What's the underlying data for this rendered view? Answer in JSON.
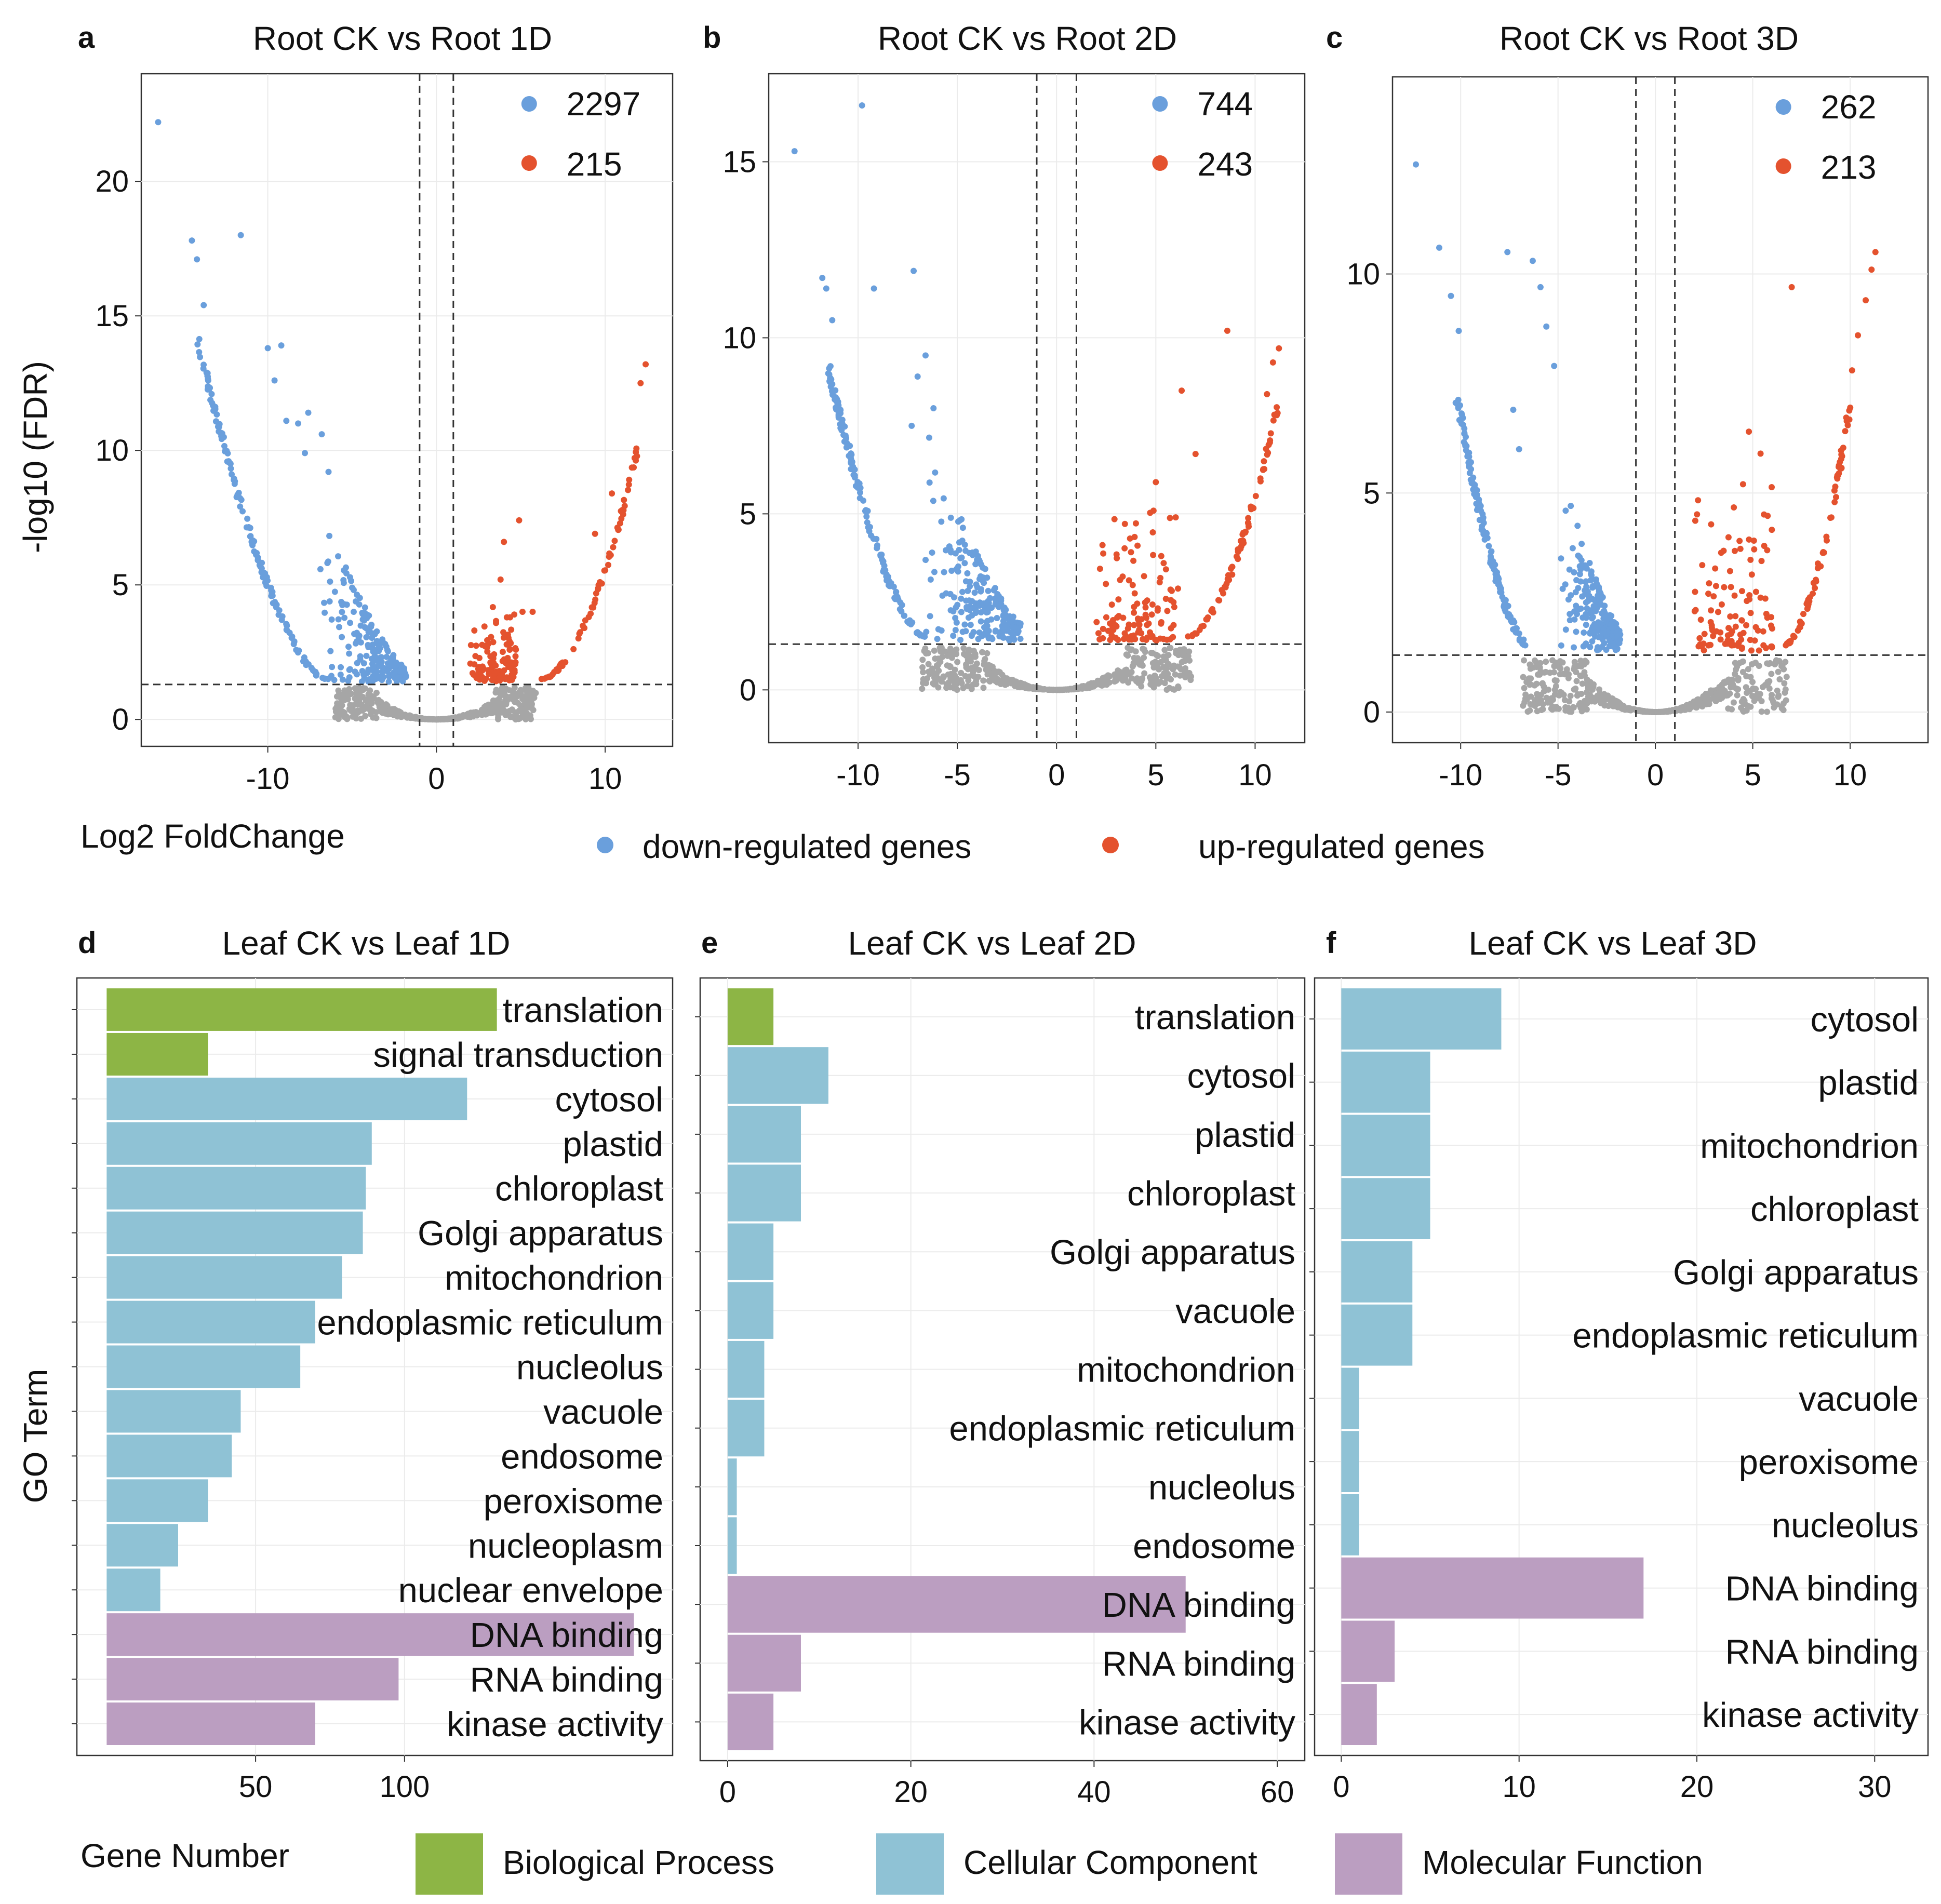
{
  "colors": {
    "down": "#6a9fdc",
    "up": "#e4522e",
    "ns": "#a6a6a6",
    "bp": "#8db545",
    "cc": "#8fc2d5",
    "mf": "#bb9ec1"
  },
  "axes": {
    "volcano_y_title": "-log10 (FDR)",
    "volcano_x_title": "Log2 FoldChange",
    "go_y_title": "GO Term",
    "go_x_title": "Gene Number"
  },
  "legend_volcano": {
    "down_label": "down-regulated genes",
    "up_label": "up-regulated genes"
  },
  "legend_go": {
    "bp_label": "Biological Process",
    "cc_label": "Cellular Component",
    "mf_label": "Molecular Function"
  },
  "chart_data": [
    {
      "id": "a",
      "letter": "a",
      "type": "scatter",
      "title": "Root CK vs Root 1D",
      "down_count": "2297",
      "up_count": "215",
      "xlim": [
        -17.5,
        14
      ],
      "ylim": [
        -1,
        24
      ],
      "xticks": [
        -10,
        0,
        10
      ],
      "yticks": [
        0,
        5,
        10,
        15,
        20
      ],
      "fc_threshold": 1,
      "fdr_threshold": 1.3,
      "outliers_down": [
        [
          -16.5,
          22.2
        ],
        [
          -14.5,
          17.8
        ],
        [
          -14.2,
          17.1
        ],
        [
          -11.6,
          18.0
        ],
        [
          -13.8,
          15.4
        ],
        [
          -10.0,
          13.8
        ],
        [
          -9.2,
          13.9
        ],
        [
          -9.6,
          12.6
        ],
        [
          -8.9,
          11.1
        ],
        [
          -8.2,
          11.0
        ],
        [
          -7.6,
          11.4
        ],
        [
          -6.8,
          10.6
        ],
        [
          -7.8,
          9.9
        ],
        [
          -6.4,
          9.2
        ]
      ],
      "outliers_up": [
        [
          12.4,
          13.2
        ],
        [
          12.1,
          12.5
        ],
        [
          10.4,
          8.4
        ],
        [
          4.9,
          7.4
        ],
        [
          4.0,
          6.6
        ],
        [
          5.7,
          4.0
        ],
        [
          5.1,
          4.0
        ],
        [
          9.4,
          6.9
        ],
        [
          3.8,
          5.2
        ]
      ]
    },
    {
      "id": "b",
      "letter": "b",
      "type": "scatter",
      "title": "Root CK vs Root 2D",
      "down_count": "744",
      "up_count": "243",
      "xlim": [
        -14.5,
        12.5
      ],
      "ylim": [
        -1.5,
        17.5
      ],
      "xticks": [
        -10,
        -5,
        0,
        5,
        10
      ],
      "yticks": [
        0,
        5,
        10,
        15
      ],
      "fc_threshold": 1,
      "fdr_threshold": 1.3,
      "outliers_down": [
        [
          -13.2,
          15.3
        ],
        [
          -9.8,
          16.6
        ],
        [
          -11.8,
          11.7
        ],
        [
          -11.6,
          11.4
        ],
        [
          -11.3,
          10.5
        ],
        [
          -9.2,
          11.4
        ],
        [
          -7.2,
          11.9
        ],
        [
          -6.6,
          9.5
        ],
        [
          -7.0,
          8.9
        ],
        [
          -6.2,
          8.0
        ],
        [
          -7.3,
          7.5
        ]
      ],
      "outliers_up": [
        [
          11.2,
          9.7
        ],
        [
          10.9,
          9.3
        ],
        [
          10.6,
          8.4
        ],
        [
          8.6,
          10.2
        ],
        [
          6.3,
          8.5
        ],
        [
          7.0,
          6.7
        ],
        [
          5.0,
          5.9
        ],
        [
          6.0,
          4.9
        ],
        [
          3.7,
          4.3
        ]
      ]
    },
    {
      "id": "c",
      "letter": "c",
      "type": "scatter",
      "title": "Root CK vs Root 3D",
      "down_count": "262",
      "up_count": "213",
      "xlim": [
        -13.5,
        14
      ],
      "ylim": [
        -0.7,
        14.5
      ],
      "xticks": [
        -10,
        -5,
        0,
        5,
        10
      ],
      "yticks": [
        0,
        5,
        10
      ],
      "fc_threshold": 1,
      "fdr_threshold": 1.3,
      "outliers_down": [
        [
          -12.3,
          12.5
        ],
        [
          -11.1,
          10.6
        ],
        [
          -10.5,
          9.5
        ],
        [
          -10.1,
          8.7
        ],
        [
          -7.6,
          10.5
        ],
        [
          -6.3,
          10.3
        ],
        [
          -5.9,
          9.7
        ],
        [
          -5.6,
          8.8
        ],
        [
          -5.2,
          7.9
        ],
        [
          -7.3,
          6.9
        ],
        [
          -7.0,
          6.0
        ]
      ],
      "outliers_up": [
        [
          11.3,
          10.5
        ],
        [
          11.1,
          10.1
        ],
        [
          10.8,
          9.4
        ],
        [
          10.4,
          8.6
        ],
        [
          10.1,
          7.8
        ],
        [
          7.0,
          9.7
        ],
        [
          4.8,
          6.4
        ],
        [
          5.4,
          5.9
        ],
        [
          4.5,
          5.2
        ]
      ]
    },
    {
      "id": "d",
      "letter": "d",
      "type": "bar",
      "title": "Leaf CK vs Leaf 1D",
      "xlim": [
        -10,
        190
      ],
      "xticks": [
        50,
        100
      ],
      "categories": [
        "translation",
        "signal transduction",
        "cytosol",
        "plastid",
        "chloroplast",
        "Golgi apparatus",
        "mitochondrion",
        "endoplasmic reticulum",
        "nucleolus",
        "vacuole",
        "endosome",
        "peroxisome",
        "nucleoplasm",
        "nuclear envelope",
        "DNA binding",
        "RNA binding",
        "kinase activity"
      ],
      "values": [
        131,
        34,
        121,
        89,
        87,
        86,
        79,
        70,
        65,
        45,
        42,
        34,
        24,
        18,
        177,
        98,
        70
      ],
      "groups": [
        "bp",
        "bp",
        "cc",
        "cc",
        "cc",
        "cc",
        "cc",
        "cc",
        "cc",
        "cc",
        "cc",
        "cc",
        "cc",
        "cc",
        "mf",
        "mf",
        "mf"
      ]
    },
    {
      "id": "e",
      "letter": "e",
      "type": "bar",
      "title": "Leaf CK vs Leaf 2D",
      "xlim": [
        -3,
        63
      ],
      "xticks": [
        0,
        20,
        40,
        60
      ],
      "categories": [
        "translation",
        "cytosol",
        "plastid",
        "chloroplast",
        "Golgi apparatus",
        "vacuole",
        "mitochondrion",
        "endoplasmic reticulum",
        "nucleolus",
        "endosome",
        "DNA binding",
        "RNA binding",
        "kinase activity"
      ],
      "values": [
        5,
        11,
        8,
        8,
        5,
        5,
        4,
        4,
        1,
        1,
        50,
        8,
        5
      ],
      "groups": [
        "bp",
        "cc",
        "cc",
        "cc",
        "cc",
        "cc",
        "cc",
        "cc",
        "cc",
        "cc",
        "mf",
        "mf",
        "mf"
      ]
    },
    {
      "id": "f",
      "letter": "f",
      "type": "bar",
      "title": "Leaf CK vs Leaf 3D",
      "xlim": [
        -1.5,
        33
      ],
      "xticks": [
        0,
        10,
        20,
        30
      ],
      "categories": [
        "cytosol",
        "plastid",
        "mitochondrion",
        "chloroplast",
        "Golgi apparatus",
        "endoplasmic reticulum",
        "vacuole",
        "peroxisome",
        "nucleolus",
        "DNA binding",
        "RNA binding",
        "kinase activity"
      ],
      "values": [
        9,
        5,
        5,
        5,
        4,
        4,
        1,
        1,
        1,
        17,
        3,
        2
      ],
      "groups": [
        "cc",
        "cc",
        "cc",
        "cc",
        "cc",
        "cc",
        "cc",
        "cc",
        "cc",
        "mf",
        "mf",
        "mf"
      ]
    }
  ]
}
